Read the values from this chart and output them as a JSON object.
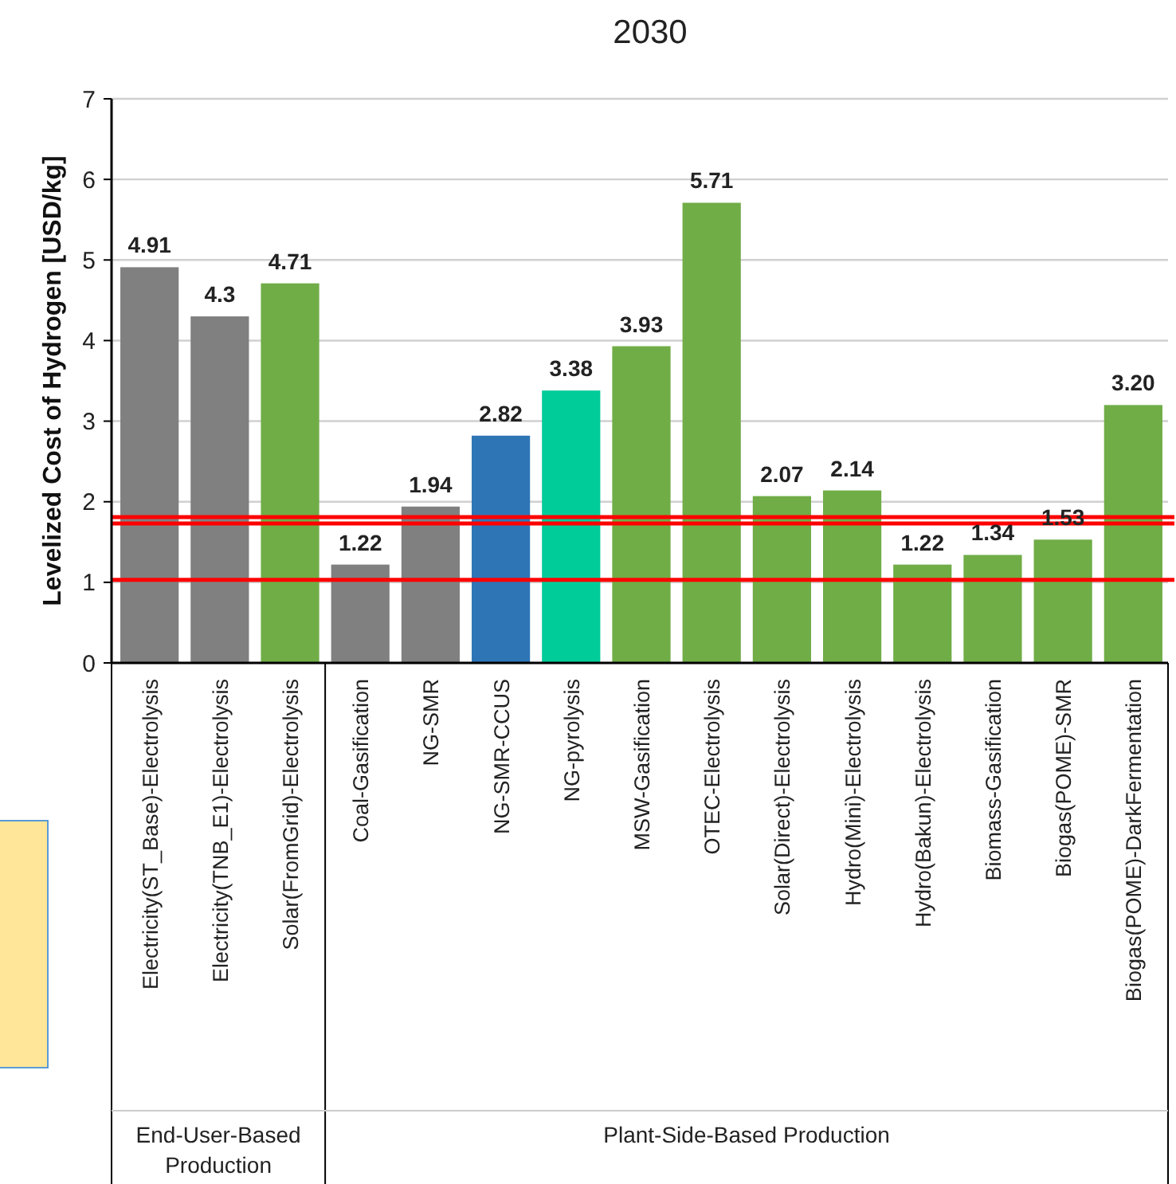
{
  "chart_data": {
    "type": "bar",
    "title": "2030",
    "ylabel": "Levelized Cost of Hydrogen [USD/kg]",
    "categories": [
      "Electricity(ST_Base)-Electrolysis",
      "Electricity(TNB_E1)-Electrolysis",
      "Solar(FromGrid)-Electrolysis",
      "Coal-Gasification",
      "NG-SMR",
      "NG-SMR-CCUS",
      "NG-pyrolysis",
      "MSW-Gasification",
      "OTEC-Electrolysis",
      "Solar(Direct)-Electrolysis",
      "Hydro(Mini)-Electrolysis",
      "Hydro(Bakun)-Electrolysis",
      "Biomass-Gasification",
      "Biogas(POME)-SMR",
      "Biogas(POME)-DarkFermentation"
    ],
    "values": [
      4.91,
      4.3,
      4.71,
      1.22,
      1.94,
      2.82,
      3.38,
      3.93,
      5.71,
      2.07,
      2.14,
      1.22,
      1.34,
      1.53,
      3.2
    ],
    "colors": [
      "#808080",
      "#808080",
      "#70ad47",
      "#808080",
      "#808080",
      "#2e75b6",
      "#00cc99",
      "#70ad47",
      "#70ad47",
      "#70ad47",
      "#70ad47",
      "#70ad47",
      "#70ad47",
      "#70ad47",
      "#70ad47"
    ],
    "value_labels": [
      "4.91",
      "4.3",
      "4.71",
      "1.22",
      "1.94",
      "2.82",
      "3.38",
      "3.93",
      "5.71",
      "2.07",
      "2.14",
      "1.22",
      "1.34",
      "1.53",
      "3.20"
    ],
    "ylim": [
      0,
      7
    ],
    "yticks": [
      0,
      1,
      2,
      3,
      4,
      5,
      6,
      7
    ],
    "grid": "y",
    "ref_lines": [
      {
        "axis": "y",
        "value": 1.03,
        "color": "#ff0000"
      },
      {
        "axis": "y",
        "value": 1.73,
        "color": "#ff0000"
      },
      {
        "axis": "y",
        "value": 1.81,
        "color": "#ff0000"
      }
    ],
    "annotations": [
      "End-User-Based Production",
      "Plant-Side-Based Production"
    ]
  }
}
